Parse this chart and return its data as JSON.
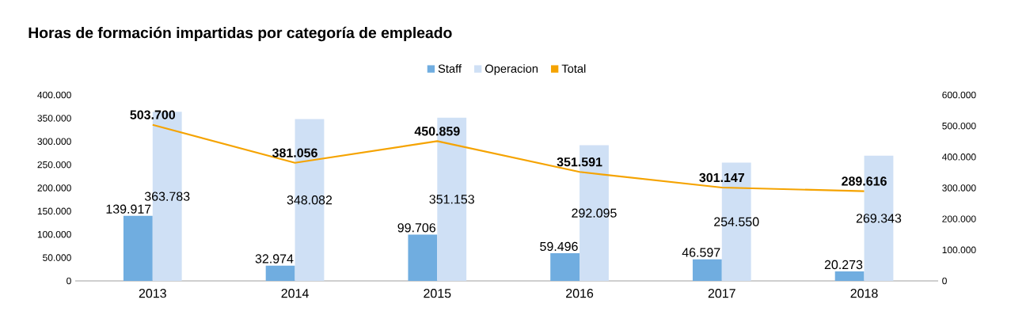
{
  "chart_data": {
    "type": "bar",
    "title": "Horas de formación impartidas por categoría de empleado",
    "categories": [
      "2013",
      "2014",
      "2015",
      "2016",
      "2017",
      "2018"
    ],
    "series": [
      {
        "name": "Staff",
        "color": "#70ade0",
        "values": [
          139917,
          32974,
          99706,
          59496,
          46597,
          20273
        ],
        "value_labels": [
          "139.917",
          "32.974",
          "99.706",
          "59.496",
          "46.597",
          "20.273"
        ]
      },
      {
        "name": "Operacion",
        "color": "#cfe0f5",
        "values": [
          363783,
          348082,
          351153,
          292095,
          254550,
          269343
        ],
        "value_labels": [
          "363.783",
          "348.082",
          "351.153",
          "292.095",
          "254.550",
          "269.343"
        ]
      },
      {
        "name": "Total",
        "type": "line",
        "axis": "y2",
        "color": "#f5a300",
        "values": [
          503700,
          381056,
          450859,
          351591,
          301147,
          289616
        ],
        "value_labels": [
          "503.700",
          "381.056",
          "450.859",
          "351.591",
          "301.147",
          "289.616"
        ]
      }
    ],
    "ylim": [
      0,
      400000
    ],
    "yticks": [
      0,
      {
        "value": 50000,
        "label": "50.000"
      },
      {
        "value": 100000,
        "label": "100.000"
      },
      {
        "value": 150000,
        "label": "150.000"
      },
      {
        "value": 200000,
        "label": "200.000"
      },
      {
        "value": 250000,
        "label": "250.000"
      },
      {
        "value": 300000,
        "label": "300.000"
      },
      {
        "value": 350000,
        "label": "350.000"
      },
      {
        "value": 400000,
        "label": "400.000"
      }
    ],
    "y2lim": [
      0,
      600000
    ],
    "y2ticks": [
      0,
      {
        "value": 100000,
        "label": "100.000"
      },
      {
        "value": 200000,
        "label": "200.000"
      },
      {
        "value": 300000,
        "label": "300.000"
      },
      {
        "value": 400000,
        "label": "400.000"
      },
      {
        "value": 500000,
        "label": "500.000"
      },
      {
        "value": 600000,
        "label": "600.000"
      }
    ],
    "legend": "top"
  }
}
